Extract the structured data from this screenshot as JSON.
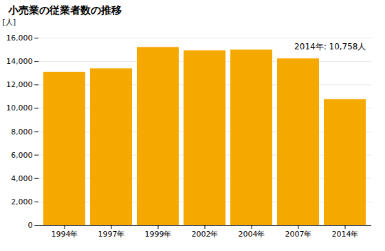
{
  "chart_data": {
    "type": "bar",
    "title": "小売業の従業者数の推移",
    "ylabel": "[人]",
    "annotation": "2014年: 10,758人",
    "categories": [
      "1994年",
      "1997年",
      "1999年",
      "2002年",
      "2004年",
      "2007年",
      "2014年"
    ],
    "values": [
      13080,
      13390,
      15200,
      14920,
      14980,
      14230,
      10758
    ],
    "color": "#F5A800",
    "ylim": [
      0,
      16000
    ],
    "yticks": [
      0,
      {
        "value": 2000,
        "label": "2,000"
      },
      {
        "value": 4000,
        "label": "4,000"
      },
      {
        "value": 6000,
        "label": "6,000"
      },
      {
        "value": 8000,
        "label": "8,000"
      },
      {
        "value": 10000,
        "label": "10,000"
      },
      {
        "value": 12000,
        "label": "12,000"
      },
      {
        "value": 14000,
        "label": "14,000"
      },
      {
        "value": 16000,
        "label": "16,000"
      }
    ],
    "grid": true
  }
}
